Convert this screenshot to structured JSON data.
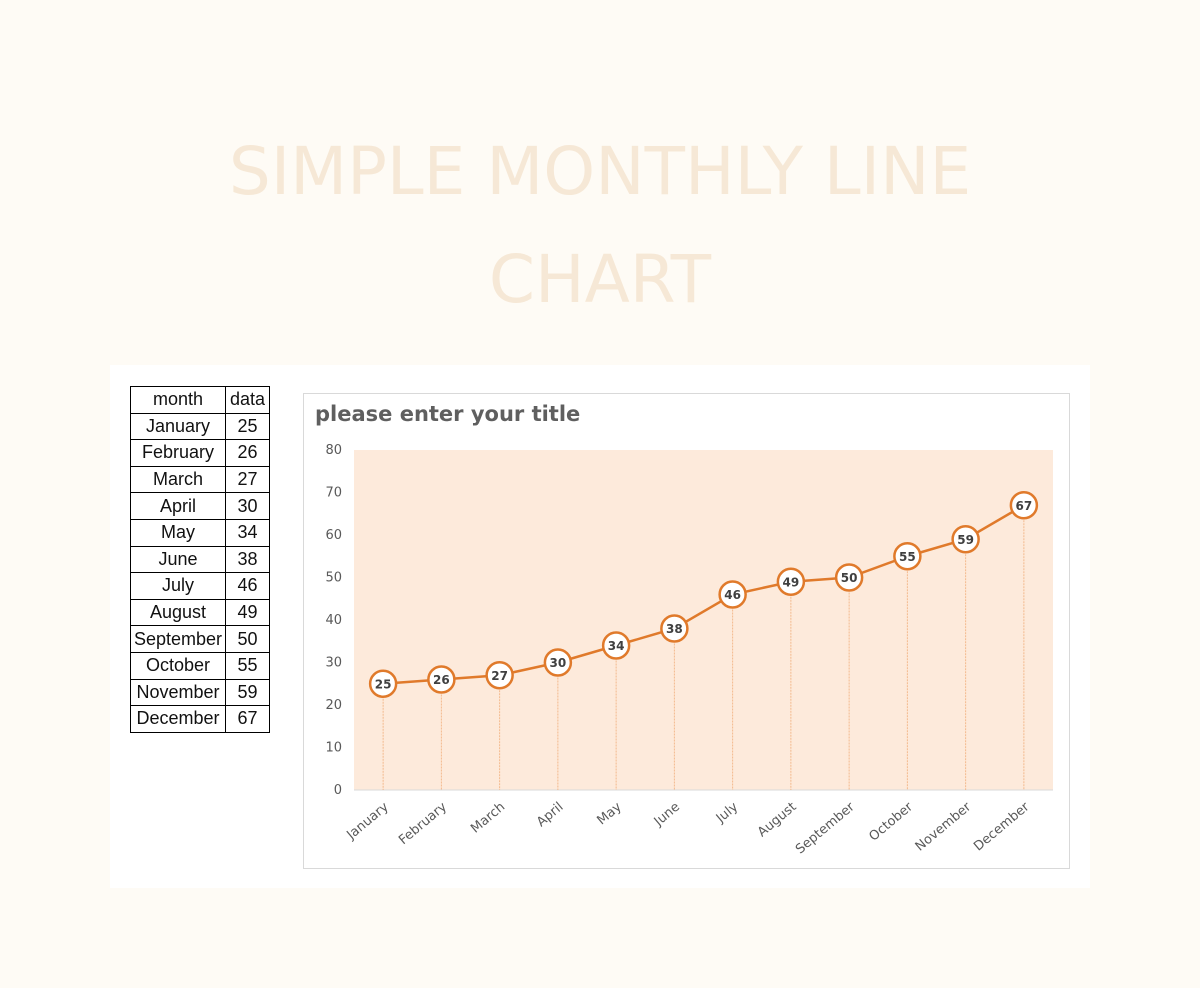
{
  "heading": {
    "line1": "SIMPLE MONTHLY LINE",
    "line2": "CHART"
  },
  "table": {
    "headers": [
      "month",
      "data"
    ],
    "rows": [
      [
        "January",
        "25"
      ],
      [
        "February",
        "26"
      ],
      [
        "March",
        "27"
      ],
      [
        "April",
        "30"
      ],
      [
        "May",
        "34"
      ],
      [
        "June",
        "38"
      ],
      [
        "July",
        "46"
      ],
      [
        "August",
        "49"
      ],
      [
        "September",
        "50"
      ],
      [
        "October",
        "55"
      ],
      [
        "November",
        "59"
      ],
      [
        "December",
        "67"
      ]
    ]
  },
  "colors": {
    "line": "#e07a2b",
    "plot_bg": "#fdeadb",
    "marker_fill": "#ffffff",
    "drop_line": "#f3b98c"
  },
  "chart_data": {
    "type": "line",
    "title": "please enter your title",
    "categories": [
      "January",
      "February",
      "March",
      "April",
      "May",
      "June",
      "July",
      "August",
      "September",
      "October",
      "November",
      "December"
    ],
    "values": [
      25,
      26,
      27,
      30,
      34,
      38,
      46,
      49,
      50,
      55,
      59,
      67
    ],
    "ylim": [
      0,
      80
    ],
    "yticks": [
      0,
      10,
      20,
      30,
      40,
      50,
      60,
      70,
      80
    ],
    "grid": false,
    "legend": "none",
    "data_labels": true,
    "drop_lines": true
  }
}
